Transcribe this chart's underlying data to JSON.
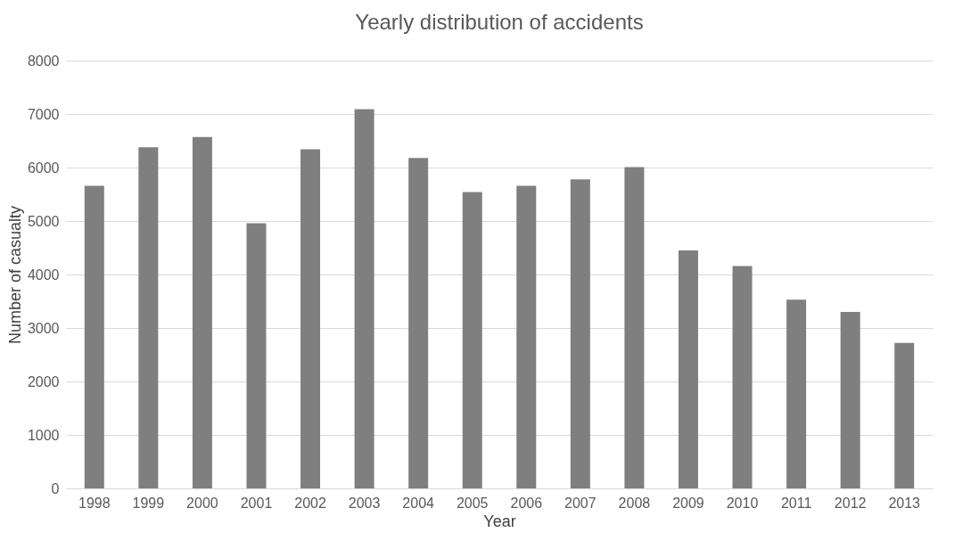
{
  "chart_data": {
    "type": "bar",
    "title": "Yearly distribution of accidents",
    "xlabel": "Year",
    "ylabel": "Number of casualty",
    "categories": [
      "1998",
      "1999",
      "2000",
      "2001",
      "2002",
      "2003",
      "2004",
      "2005",
      "2006",
      "2007",
      "2008",
      "2009",
      "2010",
      "2011",
      "2012",
      "2013"
    ],
    "values": [
      5660,
      6380,
      6570,
      4960,
      6340,
      7090,
      6180,
      5540,
      5660,
      5780,
      6010,
      4450,
      4160,
      3530,
      3300,
      2720
    ],
    "color": "#7f7f7f",
    "ylim": [
      0,
      8000
    ],
    "yticks": [
      0,
      1000,
      2000,
      3000,
      4000,
      5000,
      6000,
      7000,
      8000
    ],
    "grid": "y"
  }
}
